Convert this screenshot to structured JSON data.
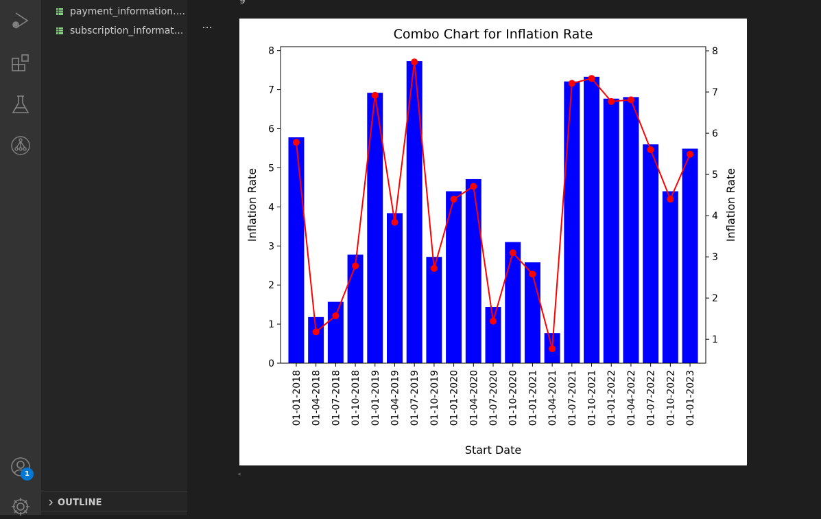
{
  "sidebar": {
    "files": [
      {
        "name": "payment_information...."
      },
      {
        "name": "subscription_informat..."
      }
    ],
    "more_label": "...",
    "outline_label": "OUTLINE"
  },
  "activity_bar": {
    "icons": [
      "run-debug-icon",
      "extensions-icon",
      "testing-icon",
      "source-control-graph-icon",
      "accounts-icon",
      "settings-gear-icon"
    ],
    "accounts_badge": "1"
  },
  "editor": {
    "top_text": "g"
  },
  "colors": {
    "bar": "#0000ff",
    "line": "#ff0000"
  },
  "chart_data": {
    "type": "bar",
    "title": "Combo Chart for Inflation Rate",
    "xlabel": "Start Date",
    "ylabel": "Inflation Rate",
    "y2label": "Inflation Rate",
    "categories": [
      "01-01-2018",
      "01-04-2018",
      "01-07-2018",
      "01-10-2018",
      "01-01-2019",
      "01-04-2019",
      "01-07-2019",
      "01-10-2019",
      "01-01-2020",
      "01-04-2020",
      "01-07-2020",
      "01-10-2020",
      "01-01-2021",
      "01-04-2021",
      "01-07-2021",
      "01-10-2021",
      "01-01-2022",
      "01-04-2022",
      "01-07-2022",
      "01-10-2022",
      "01-01-2023"
    ],
    "series": [
      {
        "type": "bar",
        "axis": "left",
        "values": [
          5.78,
          1.18,
          1.57,
          2.78,
          6.92,
          3.84,
          7.73,
          2.72,
          4.4,
          4.71,
          1.44,
          3.1,
          2.58,
          0.77,
          7.21,
          7.33,
          6.77,
          6.81,
          5.6,
          4.4,
          5.49
        ]
      },
      {
        "type": "line",
        "axis": "right",
        "values": [
          5.78,
          1.18,
          1.57,
          2.78,
          6.92,
          3.84,
          7.73,
          2.72,
          4.4,
          4.71,
          1.44,
          3.1,
          2.58,
          0.77,
          7.21,
          7.33,
          6.77,
          6.81,
          5.6,
          4.4,
          5.49
        ]
      }
    ],
    "ylim": [
      0,
      8.1
    ],
    "y2lim": [
      0.42,
      8.1
    ],
    "yticks": [
      "0",
      "1",
      "2",
      "3",
      "4",
      "5",
      "6",
      "7",
      "8"
    ],
    "y2ticks": [
      "1",
      "2",
      "3",
      "4",
      "5",
      "6",
      "7",
      "8"
    ],
    "grid": false
  }
}
